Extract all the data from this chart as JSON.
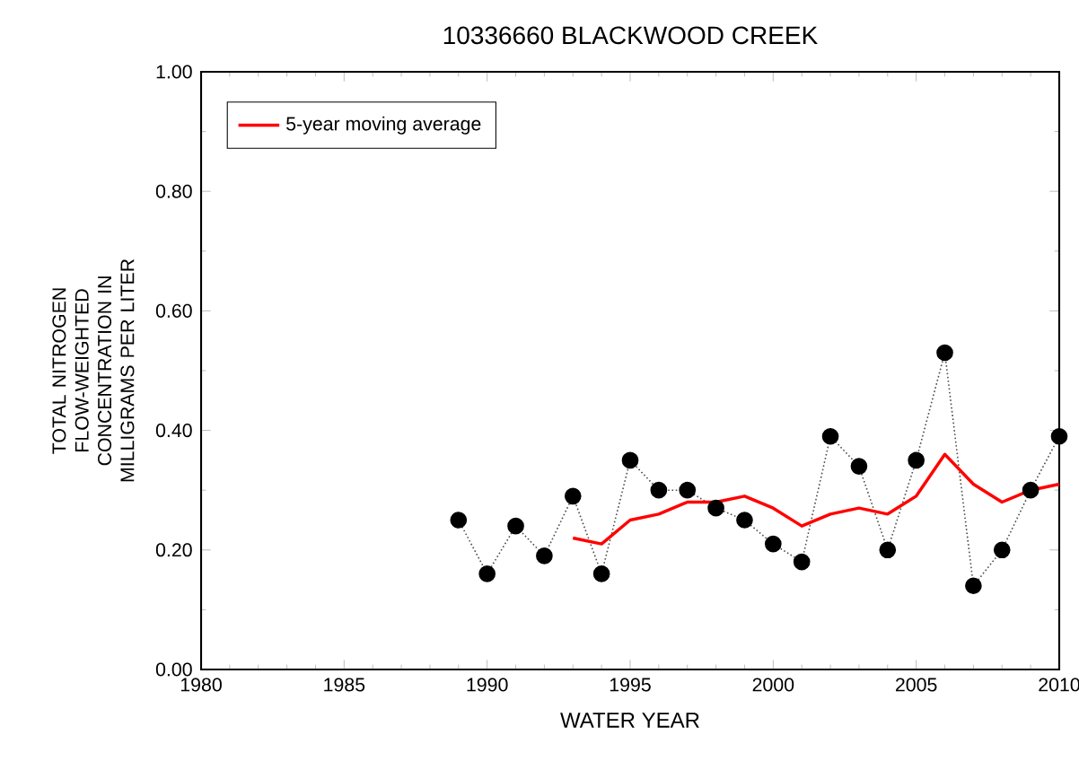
{
  "chart_data": {
    "type": "line",
    "title": "10336660 BLACKWOOD CREEK",
    "xlabel": "WATER YEAR",
    "ylabel": "TOTAL NITROGEN FLOW-WEIGHTED CONCENTRATION IN MILLIGRAMS PER LITER",
    "series": [
      {
        "color": "#000000",
        "marker": "circle",
        "line_style": "dotted",
        "x": [
          1989,
          1990,
          1991,
          1992,
          1993,
          1994,
          1995,
          1996,
          1997,
          1998,
          1999,
          2000,
          2001,
          2002,
          2003,
          2004,
          2005,
          2006,
          2007,
          2008,
          2009,
          2010
        ],
        "values": [
          0.25,
          0.16,
          0.24,
          0.19,
          0.29,
          0.16,
          0.35,
          0.3,
          0.3,
          0.27,
          0.25,
          0.21,
          0.18,
          0.39,
          0.34,
          0.2,
          0.35,
          0.53,
          0.14,
          0.2,
          0.3,
          0.39
        ]
      },
      {
        "name": "5-year moving average",
        "color": "#ff0000",
        "marker": "none",
        "line_style": "solid",
        "x": [
          1993,
          1994,
          1995,
          1996,
          1997,
          1998,
          1999,
          2000,
          2001,
          2002,
          2003,
          2004,
          2005,
          2006,
          2007,
          2008,
          2009,
          2010
        ],
        "values": [
          0.22,
          0.21,
          0.25,
          0.26,
          0.28,
          0.28,
          0.29,
          0.27,
          0.24,
          0.26,
          0.27,
          0.26,
          0.29,
          0.36,
          0.31,
          0.28,
          0.3,
          0.31
        ]
      }
    ],
    "xlim": [
      1980,
      2010
    ],
    "xticks": [
      1980,
      1985,
      1990,
      1995,
      2000,
      2005,
      2010
    ],
    "ylim": [
      0,
      1
    ],
    "yticks": [
      {
        "value": 0,
        "label": "0.00"
      },
      {
        "value": 0.2,
        "label": "0.20"
      },
      {
        "value": 0.4,
        "label": "0.40"
      },
      {
        "value": 0.6,
        "label": "0.60"
      },
      {
        "value": 0.8,
        "label": "0.80"
      },
      {
        "value": 1,
        "label": "1.00"
      }
    ],
    "legend": "top left",
    "grid": false
  }
}
